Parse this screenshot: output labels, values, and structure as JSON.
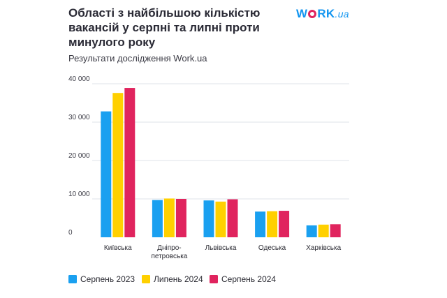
{
  "header": {
    "title": "Області з найбільшою кількістю\nвакансій у серпні та липні проти\nминулого року",
    "subtitle": "Результати дослідження Work.ua"
  },
  "logo": {
    "part1": "W",
    "part2": "RK",
    "part3": ".ua",
    "icon": "work-ua-logo"
  },
  "colors": {
    "series": [
      "#1aa0f0",
      "#ffd000",
      "#e0245e"
    ],
    "grid": "#dfe3ea"
  },
  "chart_data": {
    "type": "bar",
    "categories": [
      [
        "Київська"
      ],
      [
        "Дніпро-",
        "петровська"
      ],
      [
        "Львівська"
      ],
      [
        "Одеська"
      ],
      [
        "Харківська"
      ]
    ],
    "series": [
      {
        "name": "Серпень 2023",
        "values": [
          32800,
          9700,
          9600,
          6700,
          3100
        ]
      },
      {
        "name": "Липень 2024",
        "values": [
          37600,
          10100,
          9300,
          6800,
          3300
        ]
      },
      {
        "name": "Серпень 2024",
        "values": [
          38900,
          10000,
          9900,
          6900,
          3400
        ]
      }
    ],
    "yticks": [
      0,
      10000,
      20000,
      30000,
      40000
    ],
    "ytick_labels": [
      "0",
      "10 000",
      "20 000",
      "30 000",
      "40 000"
    ],
    "ylim": [
      0,
      40000
    ],
    "grid": true,
    "legend_position": "bottom"
  }
}
